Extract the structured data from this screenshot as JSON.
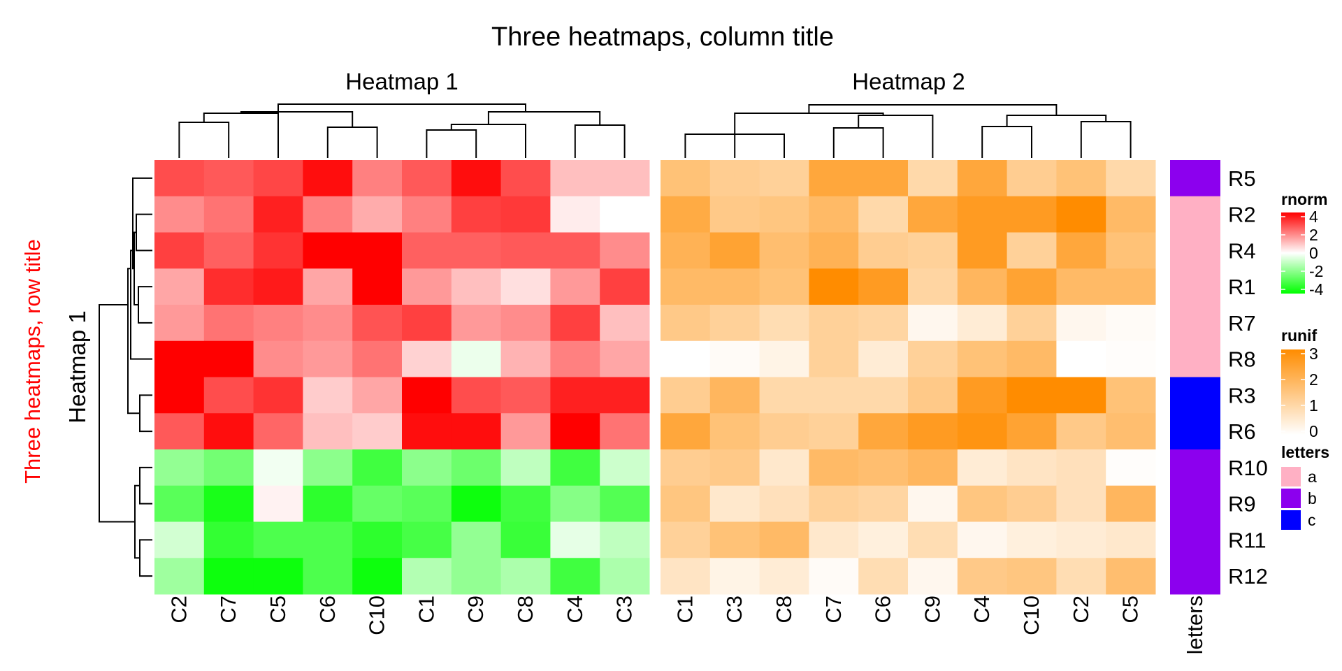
{
  "chart_data": {
    "type": "heatmap",
    "title": "Three heatmaps, column title",
    "row_title": "Three heatmaps, row title",
    "row_rows": [
      "R5",
      "R2",
      "R4",
      "R1",
      "R7",
      "R8",
      "R3",
      "R6",
      "R10",
      "R9",
      "R11",
      "R12"
    ],
    "row_split_title": "Heatmap 1",
    "heatmaps": [
      {
        "title": "Heatmap 1",
        "legend_name": "rnorm",
        "columns": [
          "C2",
          "C7",
          "C5",
          "C6",
          "C10",
          "C1",
          "C9",
          "C8",
          "C4",
          "C3"
        ],
        "values": [
          [
            2.8,
            2.6,
            2.9,
            3.8,
            2.0,
            2.6,
            3.8,
            2.8,
            1.0,
            1.0
          ],
          [
            1.8,
            2.2,
            3.5,
            2.0,
            1.3,
            2.0,
            3.0,
            3.1,
            0.3,
            0.0
          ],
          [
            3.0,
            2.5,
            3.2,
            4.0,
            4.0,
            2.5,
            2.5,
            2.6,
            2.6,
            1.8
          ],
          [
            1.4,
            3.3,
            3.6,
            1.4,
            4.0,
            1.6,
            1.0,
            0.5,
            1.6,
            3.0
          ],
          [
            1.6,
            2.2,
            2.0,
            1.8,
            2.7,
            3.0,
            1.6,
            1.8,
            3.0,
            1.0
          ],
          [
            4.0,
            4.0,
            1.8,
            1.6,
            2.2,
            0.7,
            -0.3,
            1.2,
            2.0,
            1.4
          ],
          [
            4.0,
            2.8,
            3.2,
            0.8,
            1.4,
            4.0,
            2.8,
            2.6,
            3.5,
            3.5
          ],
          [
            2.6,
            3.8,
            2.4,
            1.0,
            0.8,
            3.8,
            3.8,
            1.6,
            4.0,
            2.2
          ],
          [
            -1.7,
            -2.2,
            -0.2,
            -1.8,
            -3.0,
            -1.8,
            -2.3,
            -1.0,
            -3.0,
            -0.8
          ],
          [
            -2.6,
            -3.6,
            0.2,
            -3.3,
            -2.4,
            -2.6,
            -3.8,
            -3.0,
            -1.9,
            -2.7
          ],
          [
            -0.7,
            -3.2,
            -2.8,
            -2.8,
            -3.3,
            -2.9,
            -1.7,
            -3.1,
            -0.4,
            -1.0
          ],
          [
            -1.5,
            -3.8,
            -3.8,
            -2.8,
            -3.8,
            -1.2,
            -1.7,
            -1.3,
            -3.0,
            -1.3
          ]
        ]
      },
      {
        "title": "Heatmap 2",
        "legend_name": "runif",
        "columns": [
          "C1",
          "C3",
          "C8",
          "C7",
          "C6",
          "C9",
          "C4",
          "C10",
          "C2",
          "C5"
        ],
        "values": [
          [
            1.6,
            1.3,
            1.2,
            2.3,
            2.3,
            1.0,
            2.3,
            1.3,
            1.6,
            1.0
          ],
          [
            2.2,
            1.4,
            1.5,
            1.8,
            1.0,
            2.3,
            2.6,
            2.6,
            3.0,
            1.8
          ],
          [
            2.0,
            2.4,
            1.7,
            2.0,
            1.3,
            1.2,
            2.6,
            1.2,
            2.3,
            1.6
          ],
          [
            1.8,
            1.8,
            1.6,
            3.0,
            2.6,
            1.1,
            1.9,
            2.4,
            1.8,
            1.8
          ],
          [
            1.4,
            1.2,
            0.9,
            1.2,
            1.1,
            0.2,
            0.5,
            1.2,
            0.2,
            0.1
          ],
          [
            0.0,
            0.1,
            0.3,
            1.2,
            0.5,
            1.2,
            1.6,
            1.8,
            0.0,
            0.05
          ],
          [
            1.3,
            1.9,
            1.0,
            1.0,
            1.0,
            1.4,
            2.6,
            3.0,
            3.0,
            1.6
          ],
          [
            2.3,
            1.6,
            1.3,
            1.2,
            2.3,
            2.6,
            2.8,
            2.4,
            1.4,
            1.7
          ],
          [
            1.3,
            1.4,
            0.6,
            1.8,
            1.7,
            1.9,
            0.5,
            0.7,
            0.8,
            0.05
          ],
          [
            1.5,
            0.6,
            0.8,
            1.2,
            1.1,
            0.2,
            1.5,
            1.3,
            0.8,
            1.9
          ],
          [
            1.2,
            1.6,
            1.8,
            0.6,
            0.4,
            0.9,
            0.2,
            0.4,
            0.5,
            0.6
          ],
          [
            0.7,
            0.3,
            0.5,
            0.1,
            0.9,
            0.2,
            1.4,
            1.5,
            0.9,
            1.7
          ]
        ]
      }
    ],
    "annotation": {
      "name": "letters",
      "values": [
        "b",
        "a",
        "a",
        "a",
        "a",
        "a",
        "c",
        "c",
        "b",
        "b",
        "b",
        "b"
      ]
    },
    "legends": [
      {
        "title": "rnorm",
        "type": "continuous",
        "ticks": [
          "4",
          "2",
          "0",
          "-2",
          "-4"
        ],
        "stops": [
          {
            "value": 4,
            "color": "#ff0000"
          },
          {
            "value": 0,
            "color": "#ffffff"
          },
          {
            "value": -4,
            "color": "#00ff00"
          }
        ]
      },
      {
        "title": "runif",
        "type": "continuous",
        "ticks": [
          "3",
          "2",
          "1",
          "0"
        ],
        "stops": [
          {
            "value": 3,
            "color": "#ff8c00"
          },
          {
            "value": 0,
            "color": "#ffffff"
          }
        ]
      },
      {
        "title": "letters",
        "type": "discrete",
        "levels": [
          "a",
          "b",
          "c"
        ],
        "colors": [
          "#ffb0c4",
          "#8c00ee",
          "#0000ff"
        ]
      }
    ],
    "legend_placement": "right"
  }
}
